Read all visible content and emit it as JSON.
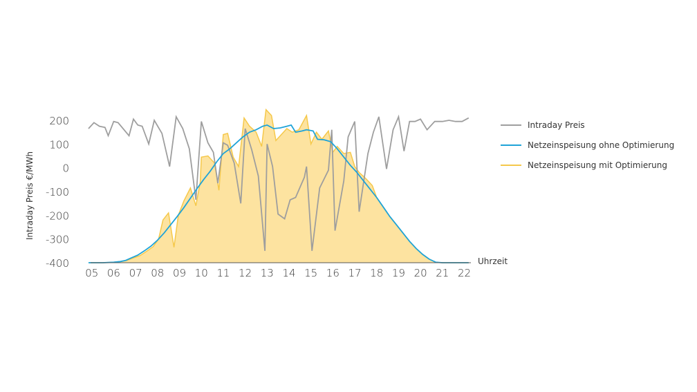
{
  "chart_data": {
    "type": "line",
    "ylabel": "Intraday Preis €/MWh",
    "xlabel": "Uhrzeit",
    "ylim": [
      -400,
      200
    ],
    "xlim": [
      4.85,
      22.3
    ],
    "yticks": [
      200,
      100,
      0,
      -100,
      -200,
      -300,
      -400
    ],
    "xticks": [
      5,
      6,
      7,
      8,
      9,
      10,
      11,
      12,
      13,
      14,
      15,
      16,
      17,
      18,
      19,
      20,
      21,
      22
    ],
    "xtick_labels": [
      "05",
      "06",
      "07",
      "08",
      "09",
      "10",
      "11",
      "12",
      "13",
      "14",
      "15",
      "16",
      "17",
      "18",
      "19",
      "20",
      "21",
      "22"
    ],
    "legend_position": "right",
    "colors": {
      "price": "#9e9e9e",
      "ohne": "#1ea3d8",
      "mit_line": "#f5c84a",
      "mit_fill": "#fde3a0"
    },
    "series": [
      {
        "name": "Intraday Preis",
        "x": [
          4.85,
          5.1,
          5.35,
          5.6,
          5.75,
          6.0,
          6.2,
          6.7,
          6.9,
          7.1,
          7.3,
          7.6,
          7.85,
          8.2,
          8.55,
          8.85,
          9.15,
          9.45,
          9.75,
          10.0,
          10.3,
          10.55,
          10.75,
          11.0,
          11.2,
          11.5,
          11.8,
          12.0,
          12.3,
          12.6,
          12.9,
          13.0,
          13.25,
          13.5,
          13.8,
          14.05,
          14.3,
          14.7,
          14.8,
          15.05,
          15.4,
          15.8,
          15.95,
          16.1,
          16.5,
          16.7,
          17.0,
          17.2,
          17.6,
          17.85,
          18.1,
          18.45,
          18.75,
          19.0,
          19.25,
          19.5,
          19.75,
          20.0,
          20.3,
          20.65,
          21.0,
          21.3,
          21.6,
          21.9,
          22.2
        ],
        "y": [
          165,
          190,
          175,
          170,
          135,
          195,
          190,
          135,
          205,
          180,
          175,
          100,
          200,
          145,
          5,
          215,
          165,
          80,
          -135,
          195,
          105,
          65,
          -65,
          105,
          95,
          20,
          -150,
          165,
          75,
          -35,
          -350,
          100,
          5,
          -195,
          -215,
          -135,
          -125,
          -40,
          5,
          -350,
          -85,
          -10,
          160,
          -265,
          -55,
          130,
          195,
          -185,
          60,
          150,
          215,
          -5,
          160,
          215,
          70,
          195,
          195,
          205,
          160,
          195,
          195,
          200,
          195,
          195,
          210
        ]
      },
      {
        "name": "Netzeinspeisung ohne Optimierung",
        "x": [
          4.85,
          5.5,
          6.0,
          6.3,
          6.55,
          6.8,
          7.1,
          7.4,
          7.7,
          8.0,
          8.3,
          8.6,
          8.9,
          9.2,
          9.5,
          9.8,
          10.1,
          10.4,
          10.7,
          11.0,
          11.3,
          11.6,
          11.9,
          12.2,
          12.5,
          12.8,
          13.0,
          13.3,
          13.6,
          13.9,
          14.1,
          14.3,
          14.6,
          14.8,
          15.1,
          15.3,
          15.6,
          15.9,
          16.2,
          16.5,
          16.8,
          17.1,
          17.4,
          17.7,
          18.0,
          18.3,
          18.6,
          18.9,
          19.2,
          19.5,
          19.8,
          20.1,
          20.4,
          20.7,
          21.0,
          21.3,
          21.6,
          22.2
        ],
        "y": [
          -400,
          -400,
          -398,
          -395,
          -390,
          -380,
          -368,
          -350,
          -330,
          -305,
          -275,
          -240,
          -205,
          -168,
          -128,
          -88,
          -50,
          -15,
          25,
          60,
          80,
          105,
          130,
          150,
          160,
          175,
          180,
          165,
          168,
          175,
          180,
          150,
          155,
          160,
          155,
          120,
          118,
          110,
          80,
          45,
          10,
          -20,
          -55,
          -90,
          -125,
          -165,
          -205,
          -240,
          -275,
          -310,
          -340,
          -365,
          -385,
          -398,
          -400,
          -400,
          -400,
          -400
        ]
      },
      {
        "name": "Netzeinspeisung mit Optimierung",
        "x": [
          4.85,
          5.5,
          6.0,
          6.3,
          6.6,
          6.9,
          7.2,
          7.5,
          7.8,
          8.05,
          8.25,
          8.5,
          8.75,
          8.95,
          9.2,
          9.5,
          9.75,
          9.95,
          10.0,
          10.3,
          10.6,
          10.8,
          11.0,
          11.2,
          11.45,
          11.7,
          11.95,
          12.2,
          12.5,
          12.75,
          12.95,
          13.2,
          13.4,
          13.65,
          13.9,
          14.15,
          14.45,
          14.8,
          15.0,
          15.25,
          15.5,
          15.8,
          16.0,
          16.2,
          16.5,
          16.8,
          17.0,
          17.2,
          17.5,
          17.8,
          18.0,
          18.3,
          18.6,
          18.9,
          19.2,
          19.5,
          19.8,
          20.1,
          20.4,
          20.7,
          21.0,
          21.3,
          21.6,
          22.2
        ],
        "y": [
          -400,
          -400,
          -398,
          -395,
          -390,
          -380,
          -370,
          -352,
          -332,
          -300,
          -220,
          -190,
          -335,
          -200,
          -140,
          -85,
          -160,
          -60,
          45,
          50,
          20,
          -95,
          140,
          145,
          45,
          5,
          210,
          175,
          150,
          90,
          245,
          220,
          115,
          140,
          165,
          150,
          160,
          220,
          100,
          150,
          120,
          155,
          65,
          90,
          60,
          65,
          5,
          -20,
          -45,
          -75,
          -125,
          -165,
          -205,
          -240,
          -275,
          -310,
          -340,
          -365,
          -385,
          -398,
          -400,
          -400,
          -400,
          -400
        ]
      }
    ]
  }
}
